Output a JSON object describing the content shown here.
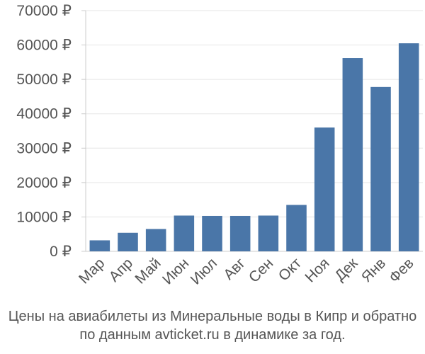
{
  "chart_data": {
    "type": "bar",
    "categories": [
      "Мар",
      "Апр",
      "Май",
      "Июн",
      "Июл",
      "Авг",
      "Сен",
      "Окт",
      "Ноя",
      "Дек",
      "Янв",
      "Фев"
    ],
    "values": [
      3200,
      5400,
      6500,
      10400,
      10300,
      10300,
      10400,
      13500,
      36000,
      56200,
      47800,
      60500
    ],
    "ylim": [
      0,
      70000
    ],
    "yticks": [
      0,
      10000,
      20000,
      30000,
      40000,
      50000,
      60000,
      70000
    ],
    "ytick_labels": [
      "0 ₽",
      "10000 ₽",
      "20000 ₽",
      "30000 ₽",
      "40000 ₽",
      "50000 ₽",
      "60000 ₽",
      "70000 ₽"
    ],
    "bar_color": "#4a76a8",
    "grid": true,
    "legend": false
  },
  "caption": {
    "line1": "Цены на авиабилеты из Минеральные воды в Кипр и обратно",
    "line2": "по данным avticket.ru в динамике за год."
  }
}
